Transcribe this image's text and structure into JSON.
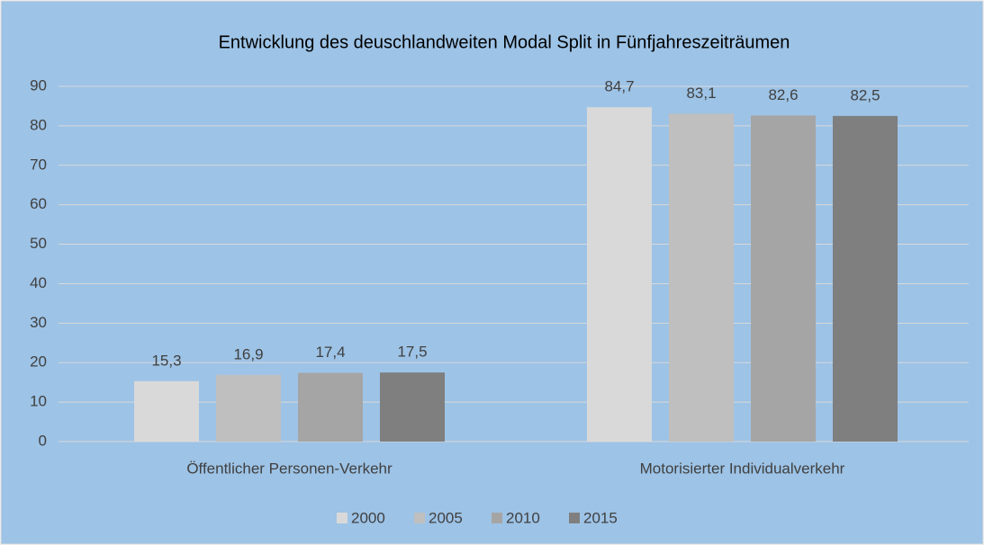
{
  "chart_data": {
    "type": "bar",
    "title": "Entwicklung des deuschlandweiten Modal Split in Fünfjahreszeiträumen",
    "categories": [
      "Öffentlicher Personen-Verkehr",
      "Motorisierter Individualverkehr"
    ],
    "series": [
      {
        "name": "2000",
        "color": "#d9d9d9",
        "values": [
          15.3,
          84.7
        ],
        "value_labels": [
          "15,3",
          "84,7"
        ]
      },
      {
        "name": "2005",
        "color": "#bfbfbf",
        "values": [
          16.9,
          83.1
        ],
        "value_labels": [
          "16,9",
          "83,1"
        ]
      },
      {
        "name": "2010",
        "color": "#a5a5a5",
        "values": [
          17.4,
          82.6
        ],
        "value_labels": [
          "17,4",
          "82,6"
        ]
      },
      {
        "name": "2015",
        "color": "#7f7f7f",
        "values": [
          17.5,
          82.5
        ],
        "value_labels": [
          "17,5",
          "82,5"
        ]
      }
    ],
    "ylim": [
      0,
      90
    ],
    "yticks": [
      0,
      10,
      20,
      30,
      40,
      50,
      60,
      70,
      80,
      90
    ],
    "grid": true,
    "legend": "bottom"
  }
}
